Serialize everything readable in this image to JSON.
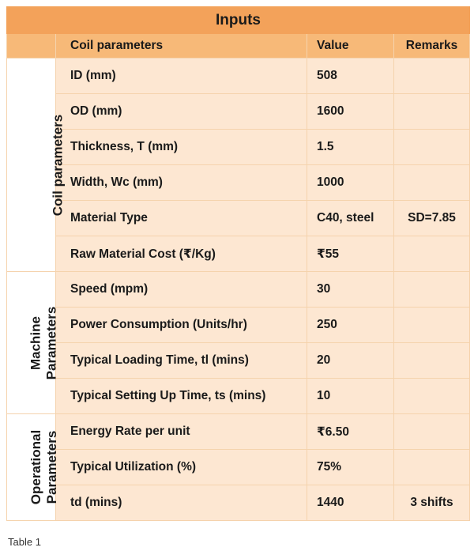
{
  "title": "Inputs",
  "header": {
    "group_blank": "",
    "parameter": "Coil parameters",
    "value": "Value",
    "remarks": "Remarks"
  },
  "groups": [
    {
      "label_line1": "Coil parameters",
      "label_line2": "",
      "rows": [
        {
          "parameter": "ID (mm)",
          "value": "508",
          "remarks": ""
        },
        {
          "parameter": "OD (mm)",
          "value": "1600",
          "remarks": ""
        },
        {
          "parameter": "Thickness, T (mm)",
          "value": "1.5",
          "remarks": ""
        },
        {
          "parameter": "Width, Wc (mm)",
          "value": "1000",
          "remarks": ""
        },
        {
          "parameter": "Material Type",
          "value": "C40, steel",
          "remarks": "SD=7.85"
        },
        {
          "parameter": "Raw Material Cost (₹/Kg)",
          "value": "₹55",
          "remarks": ""
        }
      ]
    },
    {
      "label_line1": "Machine",
      "label_line2": "Parameters",
      "rows": [
        {
          "parameter": "Speed (mpm)",
          "value": "30",
          "remarks": ""
        },
        {
          "parameter": "Power Consumption (Units/hr)",
          "value": "250",
          "remarks": ""
        },
        {
          "parameter": "Typical Loading Time, tl (mins)",
          "value": "20",
          "remarks": ""
        },
        {
          "parameter": "Typical Setting Up Time, ts (mins)",
          "value": "10",
          "remarks": ""
        }
      ]
    },
    {
      "label_line1": "Operational",
      "label_line2": "Parameters",
      "rows": [
        {
          "parameter": "Energy Rate per unit",
          "value": "₹6.50",
          "remarks": ""
        },
        {
          "parameter": "Typical Utilization (%)",
          "value": "75%",
          "remarks": ""
        },
        {
          "parameter": "td (mins)",
          "value": "1440",
          "remarks": "3 shifts"
        }
      ]
    }
  ],
  "caption": "Table 1"
}
